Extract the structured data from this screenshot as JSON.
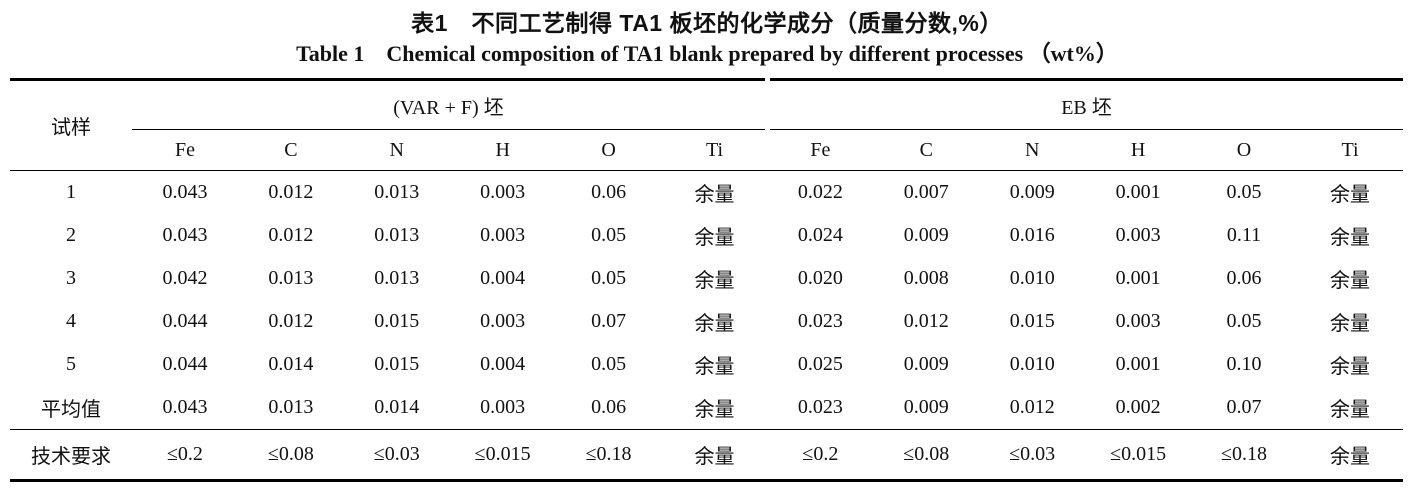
{
  "title": {
    "zh": "表1　不同工艺制得 TA1 板坯的化学成分（质量分数,%）",
    "en": "Table 1　Chemical composition of TA1 blank prepared by different processes （wt%）"
  },
  "table": {
    "sample_col_header": "试样",
    "groups": [
      {
        "label": "(VAR + F) 坯",
        "elements": [
          "Fe",
          "C",
          "N",
          "H",
          "O",
          "Ti"
        ]
      },
      {
        "label": "EB 坯",
        "elements": [
          "Fe",
          "C",
          "N",
          "H",
          "O",
          "Ti"
        ]
      }
    ],
    "rows": [
      {
        "sample": "1",
        "var_f": [
          "0.043",
          "0.012",
          "0.013",
          "0.003",
          "0.06",
          "余量"
        ],
        "eb": [
          "0.022",
          "0.007",
          "0.009",
          "0.001",
          "0.05",
          "余量"
        ]
      },
      {
        "sample": "2",
        "var_f": [
          "0.043",
          "0.012",
          "0.013",
          "0.003",
          "0.05",
          "余量"
        ],
        "eb": [
          "0.024",
          "0.009",
          "0.016",
          "0.003",
          "0.11",
          "余量"
        ]
      },
      {
        "sample": "3",
        "var_f": [
          "0.042",
          "0.013",
          "0.013",
          "0.004",
          "0.05",
          "余量"
        ],
        "eb": [
          "0.020",
          "0.008",
          "0.010",
          "0.001",
          "0.06",
          "余量"
        ]
      },
      {
        "sample": "4",
        "var_f": [
          "0.044",
          "0.012",
          "0.015",
          "0.003",
          "0.07",
          "余量"
        ],
        "eb": [
          "0.023",
          "0.012",
          "0.015",
          "0.003",
          "0.05",
          "余量"
        ]
      },
      {
        "sample": "5",
        "var_f": [
          "0.044",
          "0.014",
          "0.015",
          "0.004",
          "0.05",
          "余量"
        ],
        "eb": [
          "0.025",
          "0.009",
          "0.010",
          "0.001",
          "0.10",
          "余量"
        ]
      },
      {
        "sample": "平均值",
        "var_f": [
          "0.043",
          "0.013",
          "0.014",
          "0.003",
          "0.06",
          "余量"
        ],
        "eb": [
          "0.023",
          "0.009",
          "0.012",
          "0.002",
          "0.07",
          "余量"
        ]
      },
      {
        "sample": "技术要求",
        "is_spec": true,
        "var_f": [
          "≤0.2",
          "≤0.08",
          "≤0.03",
          "≤0.015",
          "≤0.18",
          "余量"
        ],
        "eb": [
          "≤0.2",
          "≤0.08",
          "≤0.03",
          "≤0.015",
          "≤0.18",
          "余量"
        ]
      }
    ]
  }
}
